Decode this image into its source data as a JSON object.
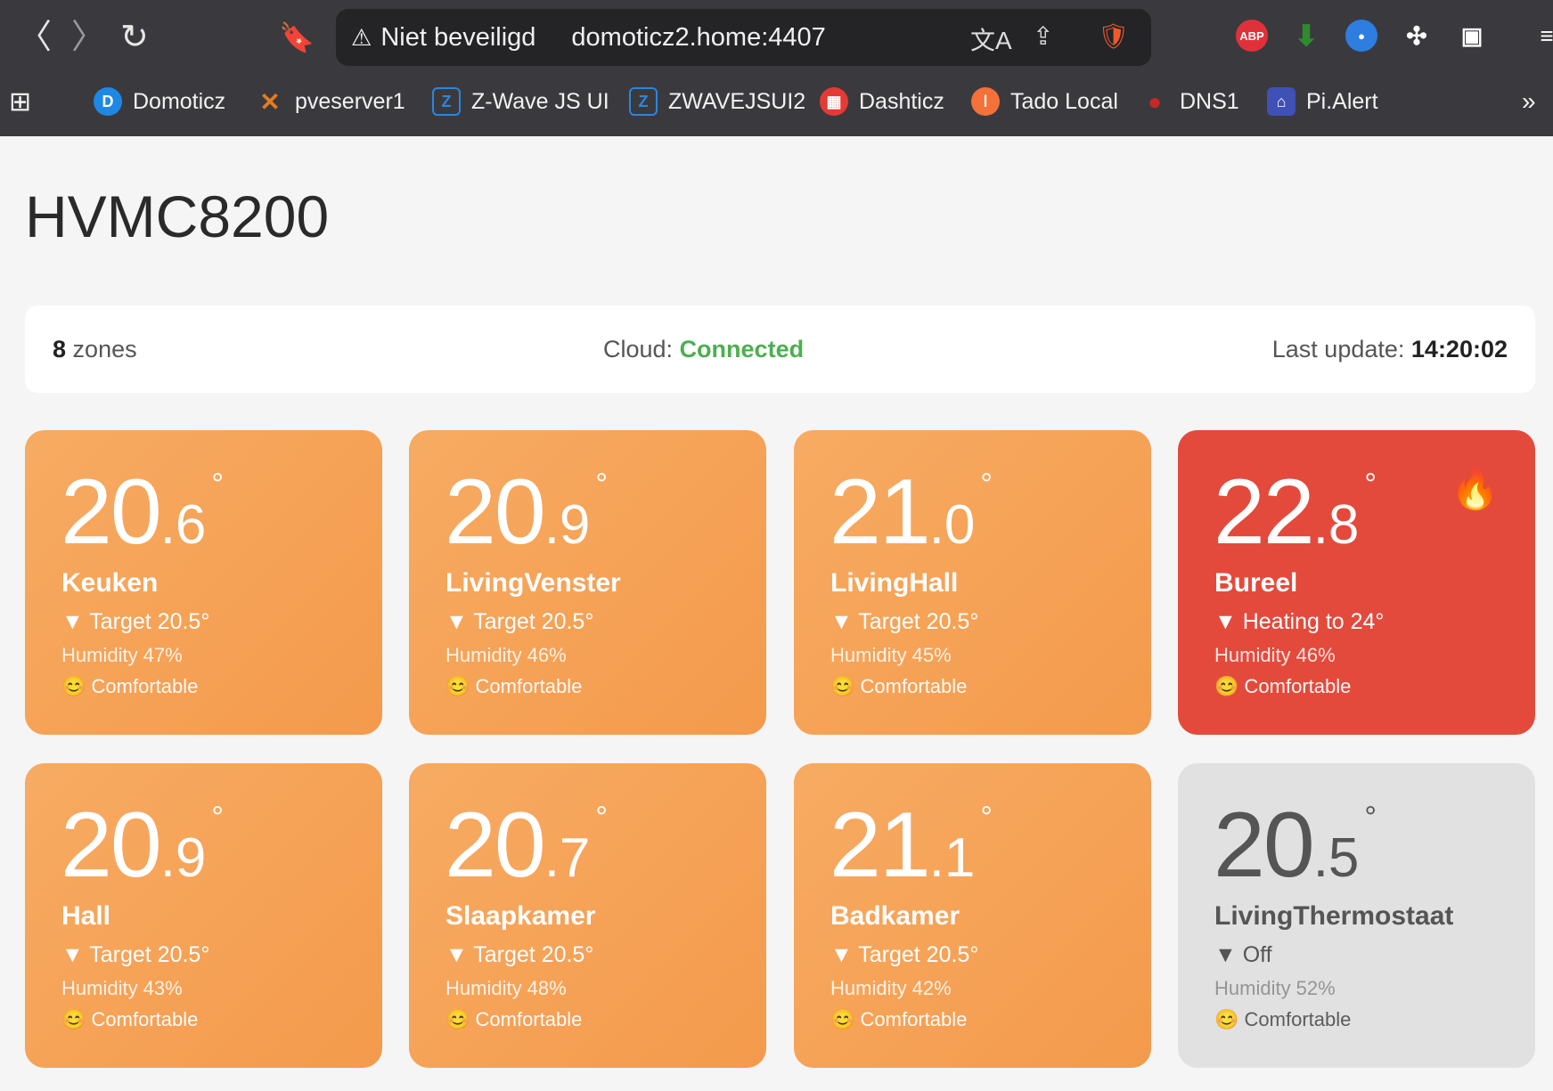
{
  "browser": {
    "security": "Niet beveiligd",
    "url": "domoticz2.home:4407",
    "bookmarks": [
      {
        "label": "Domoticz",
        "color": "#1e88e5",
        "glyph": "D"
      },
      {
        "label": "pveserver1",
        "color": "#e57c1f",
        "glyph": "✕"
      },
      {
        "label": "Z-Wave JS UI",
        "color": "#1565c0",
        "glyph": "Z"
      },
      {
        "label": "ZWAVEJSUI2",
        "color": "#1565c0",
        "glyph": "Z"
      },
      {
        "label": "Dashticz",
        "color": "#e53935",
        "glyph": "▦"
      },
      {
        "label": "Tado Local",
        "color": "#f4713a",
        "glyph": "🌡"
      },
      {
        "label": "DNS1",
        "color": "#c62828",
        "glyph": "●"
      },
      {
        "label": "Pi.Alert",
        "color": "#3f51b5",
        "glyph": "⌂"
      }
    ],
    "extensions": {
      "abp": "ABP"
    }
  },
  "page": {
    "title": "HVMC8200"
  },
  "status": {
    "zones_count": "8",
    "zones_label": "zones",
    "cloud_label": "Cloud:",
    "cloud_value": "Connected",
    "update_label": "Last update:",
    "update_value": "14:20:02"
  },
  "colors": {
    "normal": "#f5a25a",
    "heating": "#e34a3c",
    "off": "#e1e1e1",
    "connected": "#4caf50"
  },
  "zones": [
    {
      "int": "20",
      "dec": ".6",
      "deg": "°",
      "name": "Keuken",
      "target": "Target 20.5°",
      "humidity": "Humidity 47%",
      "comfort": "Comfortable",
      "state": "normal"
    },
    {
      "int": "20",
      "dec": ".9",
      "deg": "°",
      "name": "LivingVenster",
      "target": "Target 20.5°",
      "humidity": "Humidity 46%",
      "comfort": "Comfortable",
      "state": "normal"
    },
    {
      "int": "21",
      "dec": ".0",
      "deg": "°",
      "name": "LivingHall",
      "target": "Target 20.5°",
      "humidity": "Humidity 45%",
      "comfort": "Comfortable",
      "state": "normal"
    },
    {
      "int": "22",
      "dec": ".8",
      "deg": "°",
      "name": "Bureel",
      "target": "Heating to 24°",
      "humidity": "Humidity 46%",
      "comfort": "Comfortable",
      "state": "heating"
    },
    {
      "int": "20",
      "dec": ".9",
      "deg": "°",
      "name": "Hall",
      "target": "Target 20.5°",
      "humidity": "Humidity 43%",
      "comfort": "Comfortable",
      "state": "normal"
    },
    {
      "int": "20",
      "dec": ".7",
      "deg": "°",
      "name": "Slaapkamer",
      "target": "Target 20.5°",
      "humidity": "Humidity 48%",
      "comfort": "Comfortable",
      "state": "normal"
    },
    {
      "int": "21",
      "dec": ".1",
      "deg": "°",
      "name": "Badkamer",
      "target": "Target 20.5°",
      "humidity": "Humidity 42%",
      "comfort": "Comfortable",
      "state": "normal"
    },
    {
      "int": "20",
      "dec": ".5",
      "deg": "°",
      "name": "LivingThermostaat",
      "target": "Off",
      "humidity": "Humidity 52%",
      "comfort": "Comfortable",
      "state": "off"
    }
  ]
}
